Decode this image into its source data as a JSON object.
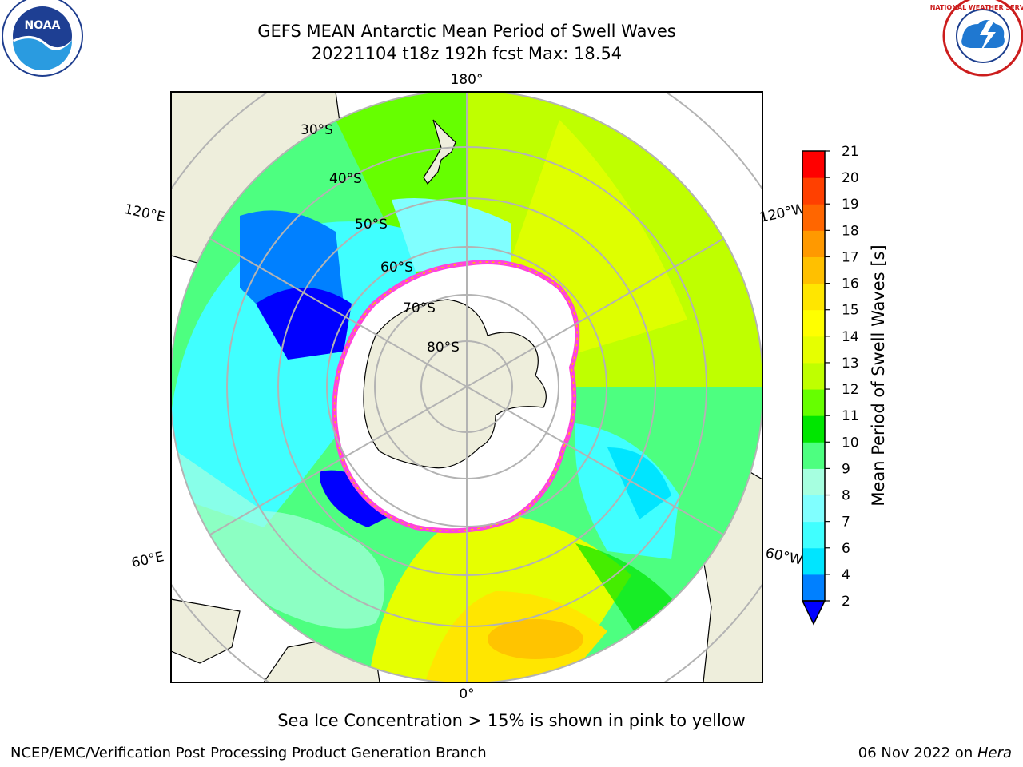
{
  "header": {
    "title_line1": "GEFS MEAN Antarctic Mean Period of Swell Waves",
    "title_line2": "20221104 t18z 192h fcst   Max: 18.54",
    "left_logo": "noaa-logo",
    "left_logo_text": "NOAA",
    "right_logo": "national-weather-service-logo",
    "right_logo_text": "NATIONAL WEATHER SERVICE"
  },
  "map": {
    "projection": "south-polar-stereographic",
    "longitude_labels": {
      "top": "180°",
      "bottom": "0°",
      "left_upper": "120°E",
      "left_lower": "60°E",
      "right_upper": "120°W",
      "right_lower": "60°W"
    },
    "latitude_labels": [
      "30°S",
      "40°S",
      "50°S",
      "60°S",
      "70°S",
      "80°S"
    ],
    "colors": {
      "land": "#eeeedc",
      "sea_ice": "#ffffff",
      "ice_edge": "#ff44dd",
      "grid": "#b3b3b3"
    }
  },
  "colorbar": {
    "label": "Mean Period of Swell Waves [s]",
    "ticks": [
      "2",
      "4",
      "6",
      "7",
      "8",
      "9",
      "10",
      "11",
      "12",
      "13",
      "14",
      "15",
      "16",
      "17",
      "18",
      "19",
      "20",
      "21"
    ],
    "colors": [
      "#0080ff",
      "#00e5ff",
      "#40ffff",
      "#80ffff",
      "#a6ffe0",
      "#4dff80",
      "#00e600",
      "#66ff00",
      "#bfff00",
      "#e6ff00",
      "#ffff00",
      "#ffe600",
      "#ffc000",
      "#ff9900",
      "#ff6600",
      "#ff4000",
      "#ff0000"
    ],
    "under_color": "#0000ff"
  },
  "caption": "Sea Ice Concentration > 15% is shown in pink to yellow",
  "footer": {
    "left": "NCEP/EMC/Verification Post Processing Product Generation Branch",
    "right_date": "06 Nov 2022 on ",
    "right_host": "Hera"
  }
}
